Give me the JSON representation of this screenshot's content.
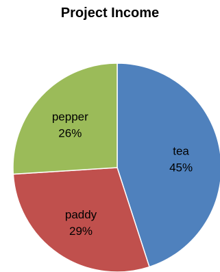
{
  "chart_data": {
    "type": "pie",
    "title": "Project Income",
    "slices": [
      {
        "label": "tea",
        "value": 45,
        "percent_label": "45%",
        "color": "#4f81bd"
      },
      {
        "label": "paddy",
        "value": 29,
        "percent_label": "29%",
        "color": "#c0504d"
      },
      {
        "label": "pepper",
        "value": 26,
        "percent_label": "26%",
        "color": "#9bbb59"
      }
    ],
    "start_angle": "12 o'clock",
    "direction": "clockwise",
    "legend": "none"
  }
}
